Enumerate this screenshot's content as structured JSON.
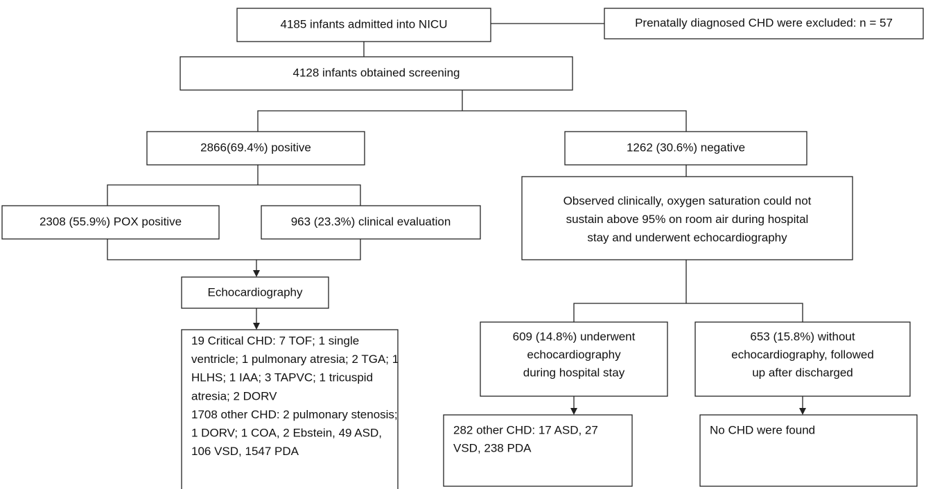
{
  "nodes": [
    {
      "lines": [
        "4185 infants admitted into NICU"
      ]
    },
    {
      "lines": [
        "Prenatally diagnosed CHD were excluded: n = 57"
      ]
    },
    {
      "lines": [
        "4128 infants obtained screening"
      ]
    },
    {
      "lines": [
        "2866(69.4%) positive"
      ]
    },
    {
      "lines": [
        "1262 (30.6%) negative"
      ]
    },
    {
      "lines": [
        "2308 (55.9%) POX positive"
      ]
    },
    {
      "lines": [
        "963 (23.3%) clinical evaluation"
      ]
    },
    {
      "lines": [
        "Echocardiography"
      ]
    },
    {
      "lines": [
        "19 Critical CHD: 7 TOF; 1 single",
        "ventricle; 1 pulmonary atresia; 2 TGA; 1",
        "HLHS; 1 IAA; 3 TAPVC; 1 tricuspid",
        "atresia; 2 DORV",
        "1708 other CHD: 2 pulmonary stenosis;",
        "1 DORV; 1 COA, 2 Ebstein, 49 ASD,",
        "106 VSD, 1547 PDA"
      ]
    },
    {
      "lines": [
        "Observed clinically, oxygen saturation could not",
        "sustain above 95% on room air during hospital",
        "stay and underwent echocardiography"
      ]
    },
    {
      "lines": [
        "609 (14.8%) underwent",
        "echocardiography",
        "during hospital stay"
      ]
    },
    {
      "lines": [
        "653 (15.8%) without",
        "echocardiography, followed",
        "up after discharged"
      ]
    },
    {
      "lines": [
        "282 other CHD: 17 ASD, 27",
        "VSD, 238 PDA"
      ]
    },
    {
      "lines": [
        "No CHD were found"
      ]
    }
  ]
}
